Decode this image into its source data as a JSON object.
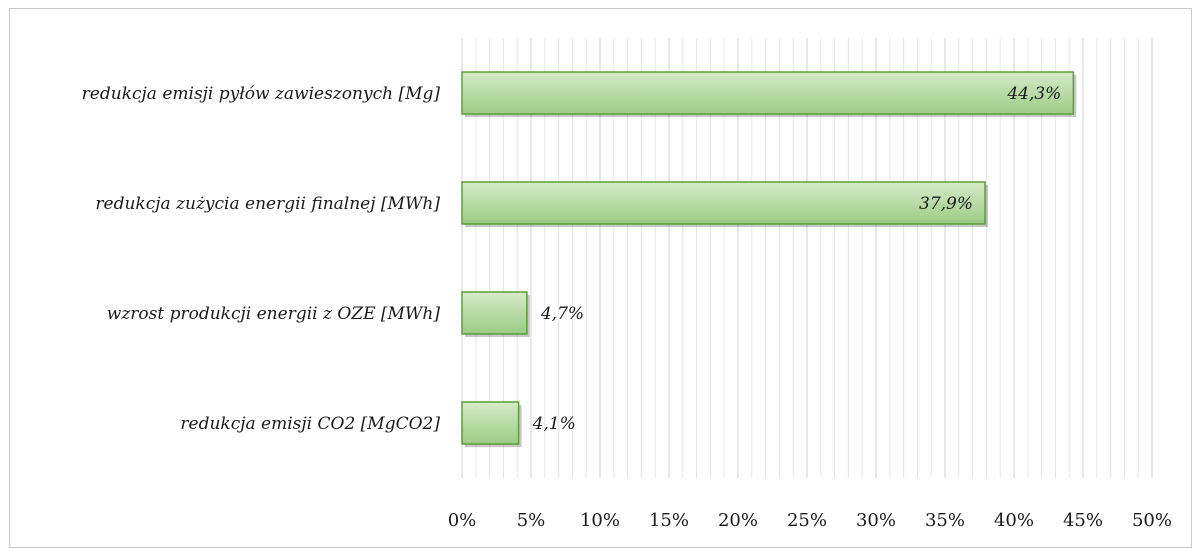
{
  "chart_data": {
    "type": "bar",
    "orientation": "horizontal",
    "categories": [
      "redukcja emisji pyłów zawieszonych [Mg]",
      "redukcja zużycia energii finalnej [MWh]",
      "wzrost produkcji energii z OZE [MWh]",
      "redukcja emisji CO2 [MgCO2]"
    ],
    "values": [
      44.3,
      37.9,
      4.7,
      4.1
    ],
    "data_labels": [
      "44,3%",
      "37,9%",
      "4,7%",
      "4,1%"
    ],
    "xlim": [
      0,
      50
    ],
    "x_ticks": [
      0,
      5,
      10,
      15,
      20,
      25,
      30,
      35,
      40,
      45,
      50
    ],
    "x_tick_labels": [
      "0%",
      "5%",
      "10%",
      "15%",
      "20%",
      "25%",
      "30%",
      "35%",
      "40%",
      "45%",
      "50%"
    ],
    "grid": "vertical major and minor",
    "legend": "none",
    "title": "",
    "xlabel": "",
    "ylabel": "",
    "colors": {
      "bar_fill_light": "#d6ebc8",
      "bar_fill_dark": "#9ccb85",
      "bar_border": "#5a9f3a",
      "grid_major": "#d0d0d0",
      "grid_minor": "#e6e6e6"
    }
  }
}
